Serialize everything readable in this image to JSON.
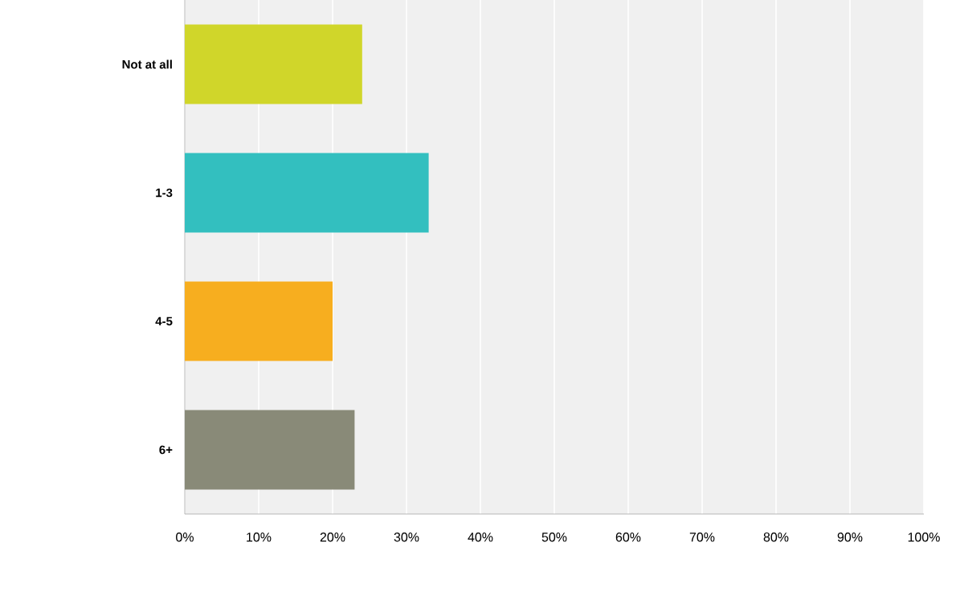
{
  "chart_data": {
    "type": "bar",
    "orientation": "horizontal",
    "categories": [
      "Not at all",
      "1-3",
      "4-5",
      "6+"
    ],
    "values": [
      24,
      33,
      20,
      23
    ],
    "colors": [
      "#d0d62a",
      "#33bfbf",
      "#f7ae1f",
      "#898a78"
    ],
    "xlim": [
      0,
      100
    ],
    "xticks": [
      {
        "value": 0,
        "label": "0%"
      },
      {
        "value": 10,
        "label": "10%"
      },
      {
        "value": 20,
        "label": "20%"
      },
      {
        "value": 30,
        "label": "30%"
      },
      {
        "value": 40,
        "label": "40%"
      },
      {
        "value": 50,
        "label": "50%"
      },
      {
        "value": 60,
        "label": "60%"
      },
      {
        "value": 70,
        "label": "70%"
      },
      {
        "value": 80,
        "label": "80%"
      },
      {
        "value": 90,
        "label": "90%"
      },
      {
        "value": 100,
        "label": "100%"
      }
    ],
    "grid": "x"
  }
}
